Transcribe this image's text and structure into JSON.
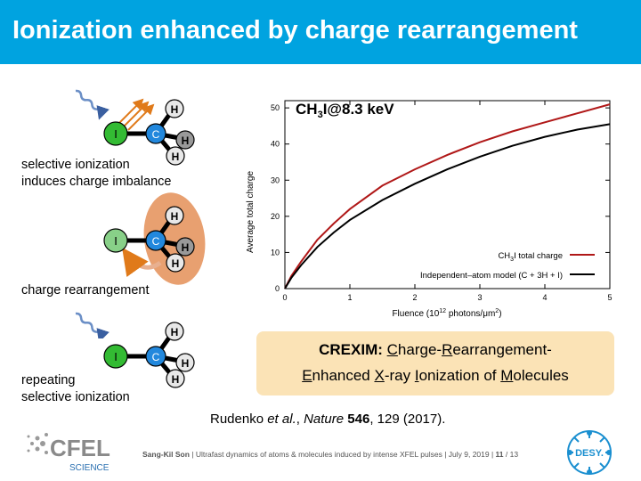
{
  "header": {
    "title": "Ionization enhanced by charge rearrangement"
  },
  "diagram": {
    "atoms": {
      "iodine": "I",
      "carbon": "C",
      "hydrogen": "H"
    },
    "captions": {
      "step1_line1": "selective ionization",
      "step1_line2": "induces charge imbalance",
      "step2": "charge rearrangement",
      "step3_line1": "repeating",
      "step3_line2": "selective ionization"
    }
  },
  "chart_data": {
    "type": "line",
    "title": "CH3I@8.3 keV",
    "xlabel": "Fluence (10^12 photons/μm^2)",
    "ylabel": "Average total charge",
    "xlim": [
      0,
      5
    ],
    "ylim": [
      0,
      55
    ],
    "x_ticks": [
      "0",
      "1",
      "2",
      "3",
      "4",
      "5"
    ],
    "y_ticks": [
      "0",
      "10",
      "20",
      "30",
      "40",
      "50"
    ],
    "legend_position": "bottom-right",
    "series": [
      {
        "name": "CH3I total charge",
        "color": "#b01818",
        "x": [
          0,
          0.1,
          0.25,
          0.5,
          0.75,
          1.0,
          1.5,
          2.0,
          2.5,
          3.0,
          3.5,
          4.0,
          4.5,
          5.0
        ],
        "y": [
          0,
          3.5,
          7.5,
          13.5,
          18.0,
          22.0,
          28.5,
          33.0,
          37.0,
          40.5,
          43.5,
          46.0,
          48.5,
          51.0
        ]
      },
      {
        "name": "Independent-atom model (C + 3H + I)",
        "color": "#000000",
        "x": [
          0,
          0.1,
          0.25,
          0.5,
          0.75,
          1.0,
          1.5,
          2.0,
          2.5,
          3.0,
          3.5,
          4.0,
          4.5,
          5.0
        ],
        "y": [
          0,
          3.0,
          6.5,
          11.5,
          15.5,
          19.0,
          24.5,
          29.0,
          33.0,
          36.5,
          39.5,
          42.0,
          44.0,
          45.5
        ]
      }
    ]
  },
  "legend": {
    "ch3i_prefix": "CH",
    "ch3i_sub": "3",
    "ch3i_rest": "I total charge",
    "iam": "Independent–atom model (C + 3H + I)"
  },
  "xaxis": {
    "label_pre": "Fluence (10",
    "label_sup": "12",
    "label_mid": " photons/μm",
    "label_sup2": "2",
    "label_end": ")"
  },
  "chart_title": {
    "pre": "CH",
    "sub": "3",
    "post": "I@8.3 keV"
  },
  "crexim": {
    "bold": "CREXIM:",
    "t1": " ",
    "u1": "C",
    "t2": "harge-",
    "u2": "R",
    "t3": "earrangement-",
    "u3": "E",
    "t4": "nhanced ",
    "u4": "X",
    "t5": "-ray ",
    "u5": "I",
    "t6": "onization of ",
    "u6": "M",
    "t7": "olecules"
  },
  "citation": {
    "authors": "Rudenko ",
    "etal": "et al.",
    "sep": ", ",
    "journal": "Nature",
    "volume": "546",
    "rest": ", 129 (2017)."
  },
  "footer": {
    "author": "Sang-Kil Son",
    "text": "  |  Ultrafast dynamics of atoms & molecules induced by intense XFEL pulses  |  July 9, 2019  |  ",
    "page": "11",
    "total": " / 13"
  },
  "logos": {
    "cfel": "CFEL",
    "cfel_sub": "SCIENCE",
    "desy": "DESY."
  },
  "colors": {
    "header": "#00a3e0",
    "iodine": "#33bb33",
    "carbon": "#2288dd",
    "hydrogen_light": "#e8e8e8",
    "hydrogen_dark": "#999999",
    "photon": "#6b8fc6",
    "electron": "#e07a1a",
    "blob": "#e8a070",
    "box": "#fbe3b6"
  }
}
